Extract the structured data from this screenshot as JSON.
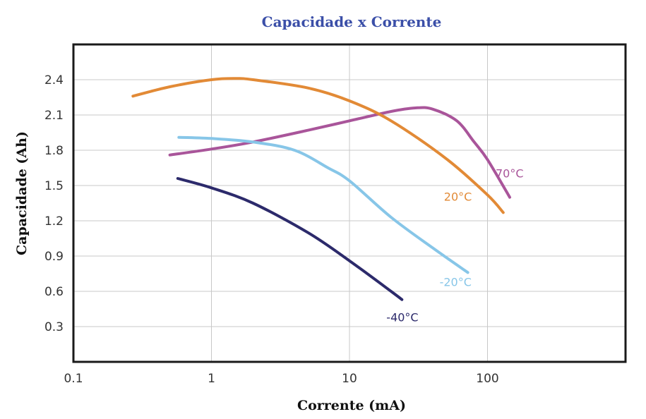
{
  "chart_data": {
    "type": "line",
    "title": "Capacidade x Corrente",
    "xlabel": "Corrente (mA)",
    "ylabel": "Capacidade (Ah)",
    "x_scale": "log",
    "xlim": [
      0.1,
      1000
    ],
    "ylim": [
      0.0,
      2.7
    ],
    "x_ticks": [
      0.1,
      1,
      10,
      100
    ],
    "x_tick_labels": [
      "0.1",
      "1",
      "10",
      "100"
    ],
    "y_ticks": [
      0.3,
      0.6,
      0.9,
      1.2,
      1.5,
      1.8,
      2.1,
      2.4
    ],
    "y_tick_labels": [
      "0.3",
      "0.6",
      "0.9",
      "1.2",
      "1.5",
      "1.8",
      "2.1",
      "2.4"
    ],
    "grid": true,
    "series": [
      {
        "name": "70°C",
        "color": "#a9559a",
        "x": [
          0.5,
          1,
          2,
          5,
          10,
          20,
          30,
          40,
          60,
          80,
          100,
          145
        ],
        "y": [
          1.76,
          1.81,
          1.87,
          1.97,
          2.05,
          2.13,
          2.16,
          2.15,
          2.05,
          1.87,
          1.72,
          1.4
        ]
      },
      {
        "name": "20°C",
        "color": "#e28a36",
        "x": [
          0.27,
          0.5,
          1,
          1.5,
          2,
          5,
          10,
          20,
          50,
          100,
          130
        ],
        "y": [
          2.26,
          2.34,
          2.4,
          2.41,
          2.4,
          2.33,
          2.22,
          2.05,
          1.73,
          1.42,
          1.27
        ]
      },
      {
        "name": "-20°C",
        "color": "#87c6e8",
        "x": [
          0.58,
          1,
          2,
          4,
          7,
          10,
          20,
          40,
          72
        ],
        "y": [
          1.91,
          1.9,
          1.87,
          1.8,
          1.65,
          1.54,
          1.23,
          0.97,
          0.76
        ]
      },
      {
        "name": "-40°C",
        "color": "#2c2a6b",
        "x": [
          0.57,
          1,
          2,
          5,
          10,
          20,
          24
        ],
        "y": [
          1.56,
          1.48,
          1.35,
          1.1,
          0.86,
          0.6,
          0.53
        ]
      }
    ]
  }
}
